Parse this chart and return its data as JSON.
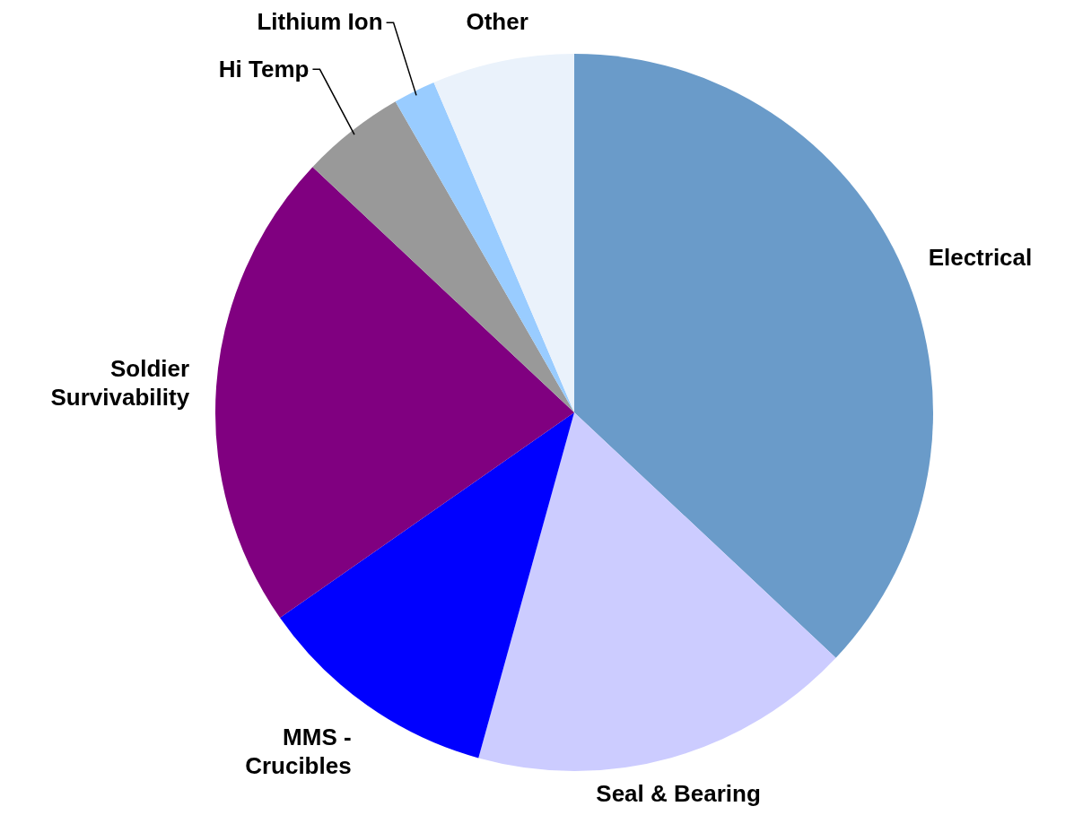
{
  "chart_data": {
    "type": "pie",
    "categories": [
      "Electrical",
      "Seal & Bearing",
      "MMS - Crucibles",
      "Soldier Survivability",
      "Hi Temp",
      "Lithium Ion",
      "Other"
    ],
    "values": [
      37,
      17.3,
      11,
      21.7,
      4.7,
      1.9,
      6.4
    ],
    "colors": [
      "#6a9bc9",
      "#ccccff",
      "#0000ff",
      "#800080",
      "#999999",
      "#99ccff",
      "#eaf2fb"
    ],
    "legend": false
  }
}
